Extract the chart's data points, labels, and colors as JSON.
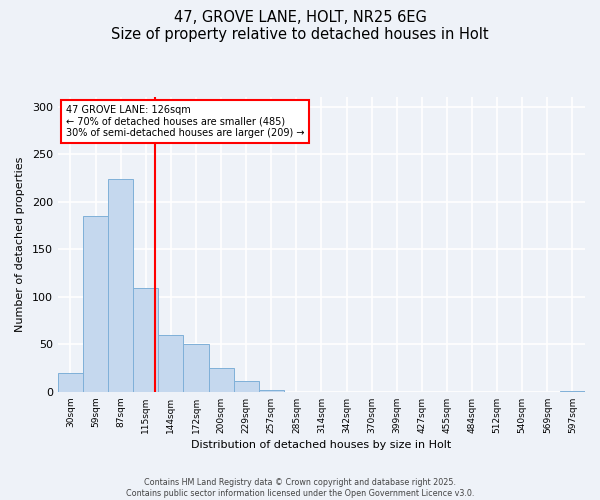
{
  "title": "47, GROVE LANE, HOLT, NR25 6EG",
  "subtitle": "Size of property relative to detached houses in Holt",
  "xlabel": "Distribution of detached houses by size in Holt",
  "ylabel": "Number of detached properties",
  "bin_labels": [
    "30sqm",
    "59sqm",
    "87sqm",
    "115sqm",
    "144sqm",
    "172sqm",
    "200sqm",
    "229sqm",
    "257sqm",
    "285sqm",
    "314sqm",
    "342sqm",
    "370sqm",
    "399sqm",
    "427sqm",
    "455sqm",
    "484sqm",
    "512sqm",
    "540sqm",
    "569sqm",
    "597sqm"
  ],
  "bar_values": [
    20,
    185,
    224,
    109,
    60,
    50,
    25,
    11,
    2,
    0,
    0,
    0,
    0,
    0,
    0,
    0,
    0,
    0,
    0,
    0,
    1
  ],
  "bar_color": "#c5d8ee",
  "bar_edge_color": "#7fb0d8",
  "vline_color": "red",
  "vline_pos": 3.88,
  "annotation_line1": "47 GROVE LANE: 126sqm",
  "annotation_line2": "← 70% of detached houses are smaller (485)",
  "annotation_line3": "30% of semi-detached houses are larger (209) →",
  "ylim": [
    0,
    310
  ],
  "yticks": [
    0,
    50,
    100,
    150,
    200,
    250,
    300
  ],
  "background_color": "#eef2f8",
  "plot_bg_color": "#eef2f8",
  "footer1": "Contains HM Land Registry data © Crown copyright and database right 2025.",
  "footer2": "Contains public sector information licensed under the Open Government Licence v3.0."
}
